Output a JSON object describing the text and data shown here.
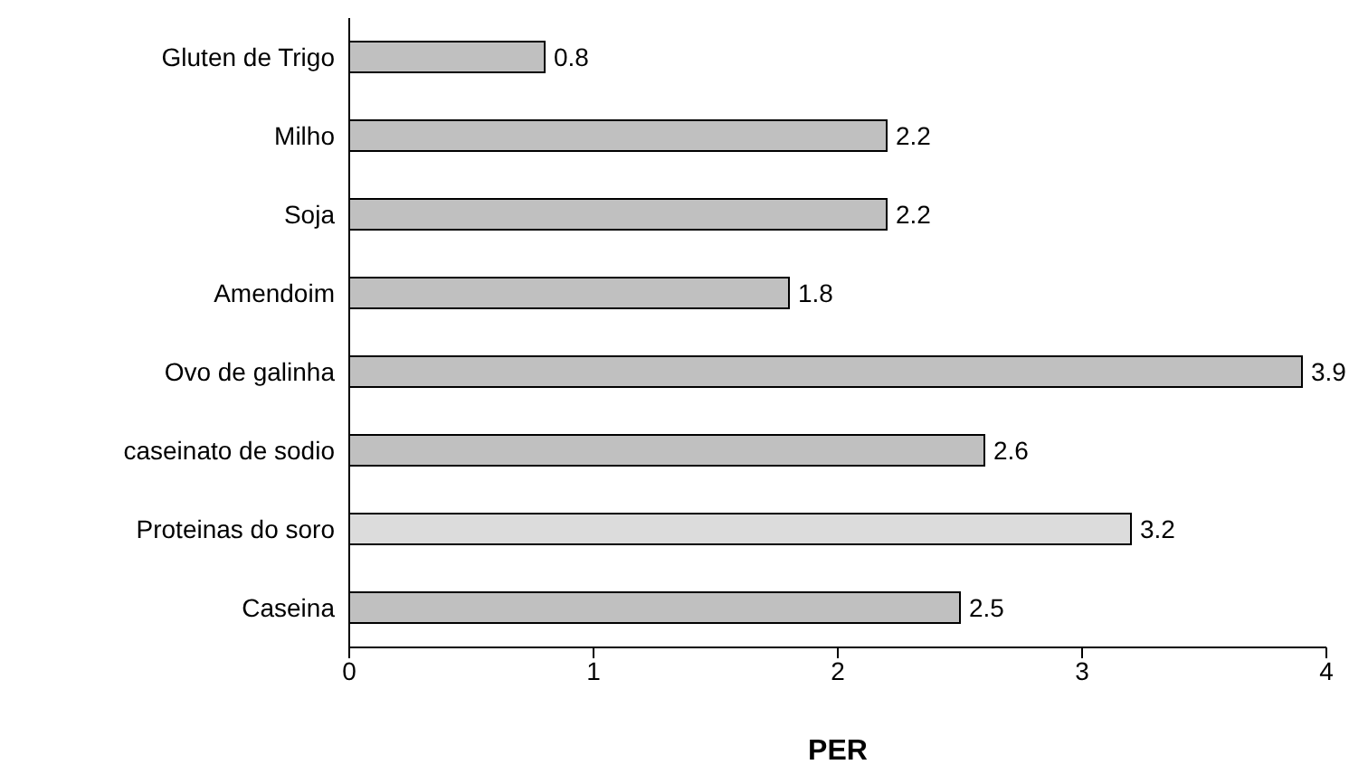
{
  "chart_data": {
    "type": "bar",
    "orientation": "horizontal",
    "xlabel": "PER",
    "categories": [
      "Gluten de Trigo",
      "Milho",
      "Soja",
      "Amendoim",
      "Ovo de galinha",
      "caseinato de sodio",
      "Proteinas do soro",
      "Caseina"
    ],
    "values": [
      0.8,
      2.2,
      2.2,
      1.8,
      3.9,
      2.6,
      3.2,
      2.5
    ],
    "colors": [
      "#c0c0c0",
      "#c0c0c0",
      "#c0c0c0",
      "#c0c0c0",
      "#c0c0c0",
      "#c0c0c0",
      "#dcdcdc",
      "#c0c0c0"
    ],
    "xlim": [
      0,
      4
    ],
    "xticks": [
      0,
      1,
      2,
      3,
      4
    ],
    "data_labels": true
  }
}
